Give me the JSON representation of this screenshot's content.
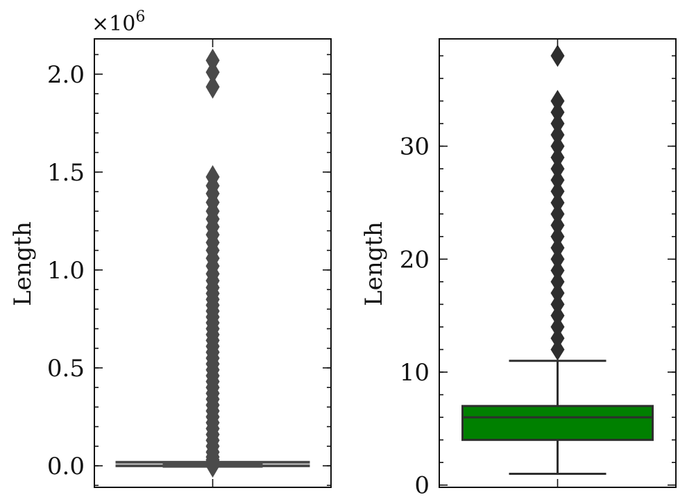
{
  "chart_data": [
    {
      "type": "box",
      "ylabel": "Length",
      "ylim": [
        -110000,
        2180000
      ],
      "y_ticks": [
        0,
        500000,
        1000000,
        1500000,
        2000000
      ],
      "y_tick_labels": [
        "0.0",
        "0.5",
        "1.0",
        "1.5",
        "2.0"
      ],
      "y_minor_step": 100000,
      "offset_label": "×10",
      "offset_exponent": "6",
      "box": {
        "q1": 1500,
        "median": 4000,
        "q3": 8000,
        "whisker_low": 0,
        "whisker_high": 18000
      },
      "outliers": [
        2070000,
        2010000,
        1935000,
        1475000,
        1430000,
        1390000,
        1345000,
        1300000,
        1260000,
        1220000,
        1180000,
        1140000,
        1100000,
        1060000,
        1020000,
        980000,
        945000,
        910000,
        880000,
        850000,
        820000,
        790000,
        760000,
        730000,
        700000,
        670000,
        640000,
        610000,
        580000,
        550000,
        520000,
        490000,
        460000,
        430000,
        400000,
        370000,
        340000,
        310000,
        280000,
        250000,
        220000,
        190000,
        160000,
        130000,
        100000,
        70000,
        45000,
        30000,
        20000,
        0
      ],
      "colors": {
        "box": "#4c4c4c",
        "outlier": "#4a4a4a"
      }
    },
    {
      "type": "box",
      "ylabel": "Length",
      "ylim": [
        -0.2,
        39.5
      ],
      "y_ticks": [
        0,
        10,
        20,
        30
      ],
      "y_tick_labels": [
        "0",
        "10",
        "20",
        "30"
      ],
      "y_minor_step": 2,
      "box": {
        "q1": 4,
        "median": 6,
        "q3": 7,
        "whisker_low": 1,
        "whisker_high": 11
      },
      "outliers": [
        12,
        13,
        14,
        15,
        16,
        17,
        18,
        19,
        20,
        21,
        22,
        23,
        24,
        25,
        26,
        27,
        28,
        29,
        30,
        31,
        32,
        33,
        34,
        38
      ],
      "colors": {
        "box": "#008000",
        "outlier": "#2e2e2e"
      }
    }
  ]
}
